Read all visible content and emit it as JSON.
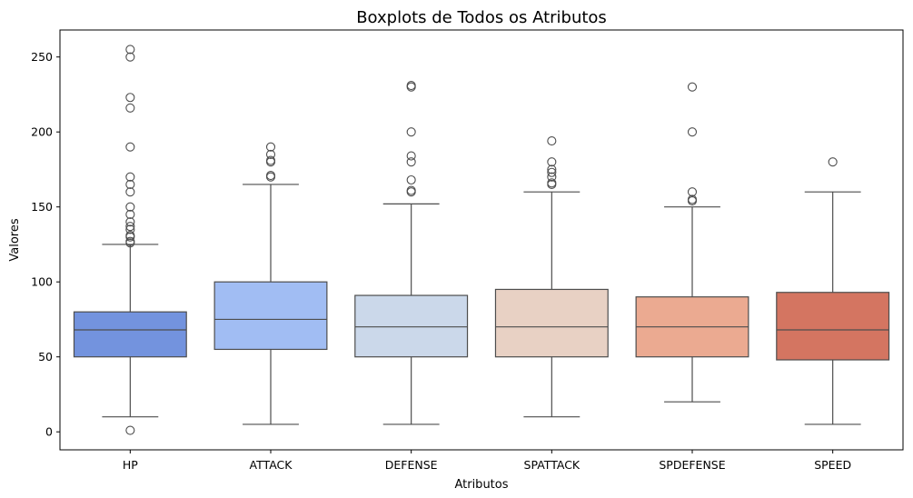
{
  "chart_data": {
    "type": "box",
    "title": "Boxplots de Todos os Atributos",
    "xlabel": "Atributos",
    "ylabel": "Valores",
    "ylim": [
      -12,
      268
    ],
    "yticks": [
      0,
      50,
      100,
      150,
      200,
      250
    ],
    "grid": false,
    "categories": [
      "HP",
      "ATTACK",
      "DEFENSE",
      "SPATTACK",
      "SPDEFENSE",
      "SPEED"
    ],
    "boxes": [
      {
        "category": "HP",
        "color": "#7393de",
        "whisker_low": 10,
        "q1": 50,
        "median": 68,
        "q3": 80,
        "whisker_high": 125,
        "outliers": [
          1,
          126,
          127,
          130,
          131,
          135,
          137,
          140,
          145,
          150,
          160,
          165,
          170,
          190,
          216,
          223,
          250,
          255
        ]
      },
      {
        "category": "ATTACK",
        "color": "#a1bdf3",
        "whisker_low": 5,
        "q1": 55,
        "median": 75,
        "q3": 100,
        "whisker_high": 165,
        "outliers": [
          170,
          171,
          180,
          181,
          185,
          190
        ]
      },
      {
        "category": "DEFENSE",
        "color": "#cbd8ea",
        "whisker_low": 5,
        "q1": 50,
        "median": 70,
        "q3": 91,
        "whisker_high": 152,
        "outliers": [
          160,
          161,
          168,
          180,
          184,
          200,
          230,
          231
        ]
      },
      {
        "category": "SPATTACK",
        "color": "#e8d1c4",
        "whisker_low": 10,
        "q1": 50,
        "median": 70,
        "q3": 95,
        "whisker_high": 160,
        "outliers": [
          165,
          166,
          170,
          173,
          175,
          180,
          194
        ]
      },
      {
        "category": "SPDEFENSE",
        "color": "#ebaa91",
        "whisker_low": 20,
        "q1": 50,
        "median": 70,
        "q3": 90,
        "whisker_high": 150,
        "outliers": [
          154,
          155,
          160,
          200,
          230
        ]
      },
      {
        "category": "SPEED",
        "color": "#d47561",
        "whisker_low": 5,
        "q1": 48,
        "median": 68,
        "q3": 93,
        "whisker_high": 160,
        "outliers": [
          180
        ]
      }
    ]
  }
}
